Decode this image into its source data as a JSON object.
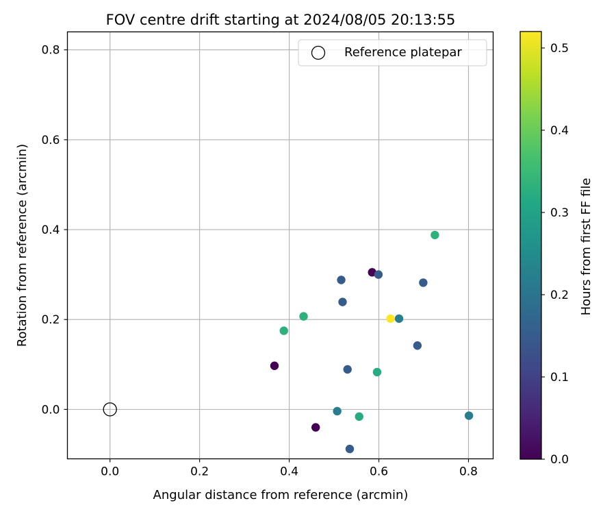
{
  "chart_data": {
    "type": "scatter",
    "title": "FOV centre drift starting at 2024/08/05 20:13:55",
    "xlabel": "Angular distance from reference (arcmin)",
    "ylabel": "Rotation from reference (arcmin)",
    "xlim": [
      -0.095,
      0.855
    ],
    "ylim": [
      -0.11,
      0.84
    ],
    "xticks": [
      0.0,
      0.2,
      0.4,
      0.6,
      0.8
    ],
    "xtick_labels": [
      "0.0",
      "0.2",
      "0.4",
      "0.6",
      "0.8"
    ],
    "yticks": [
      0.0,
      0.2,
      0.4,
      0.6,
      0.8
    ],
    "ytick_labels": [
      "0.0",
      "0.2",
      "0.4",
      "0.6",
      "0.8"
    ],
    "grid": true,
    "legend": {
      "placement": "top-right",
      "entries": [
        {
          "label": "Reference platepar",
          "marker": "open-circle"
        }
      ]
    },
    "reference_point": {
      "x": 0.0,
      "y": 0.0,
      "label": "Reference platepar"
    },
    "colorbar": {
      "label": "Hours from first FF file",
      "colormap": "viridis",
      "range": [
        0.0,
        0.52
      ],
      "ticks": [
        0.0,
        0.1,
        0.2,
        0.3,
        0.4,
        0.5
      ],
      "tick_labels": [
        "0.0",
        "0.1",
        "0.2",
        "0.3",
        "0.4",
        "0.5"
      ]
    },
    "points": [
      {
        "x": 0.367,
        "y": 0.097,
        "hours": 0.0
      },
      {
        "x": 0.459,
        "y": -0.04,
        "hours": 0.0
      },
      {
        "x": 0.585,
        "y": 0.305,
        "hours": 0.0
      },
      {
        "x": 0.516,
        "y": 0.288,
        "hours": 0.15
      },
      {
        "x": 0.519,
        "y": 0.239,
        "hours": 0.15
      },
      {
        "x": 0.53,
        "y": 0.089,
        "hours": 0.15
      },
      {
        "x": 0.599,
        "y": 0.3,
        "hours": 0.15
      },
      {
        "x": 0.699,
        "y": 0.282,
        "hours": 0.15
      },
      {
        "x": 0.686,
        "y": 0.142,
        "hours": 0.15
      },
      {
        "x": 0.535,
        "y": -0.088,
        "hours": 0.15
      },
      {
        "x": 0.507,
        "y": -0.004,
        "hours": 0.22
      },
      {
        "x": 0.645,
        "y": 0.202,
        "hours": 0.22
      },
      {
        "x": 0.801,
        "y": -0.014,
        "hours": 0.22
      },
      {
        "x": 0.556,
        "y": -0.016,
        "hours": 0.32
      },
      {
        "x": 0.596,
        "y": 0.083,
        "hours": 0.32
      },
      {
        "x": 0.432,
        "y": 0.207,
        "hours": 0.33
      },
      {
        "x": 0.388,
        "y": 0.175,
        "hours": 0.33
      },
      {
        "x": 0.725,
        "y": 0.388,
        "hours": 0.33
      },
      {
        "x": 0.626,
        "y": 0.202,
        "hours": 0.52
      }
    ]
  }
}
